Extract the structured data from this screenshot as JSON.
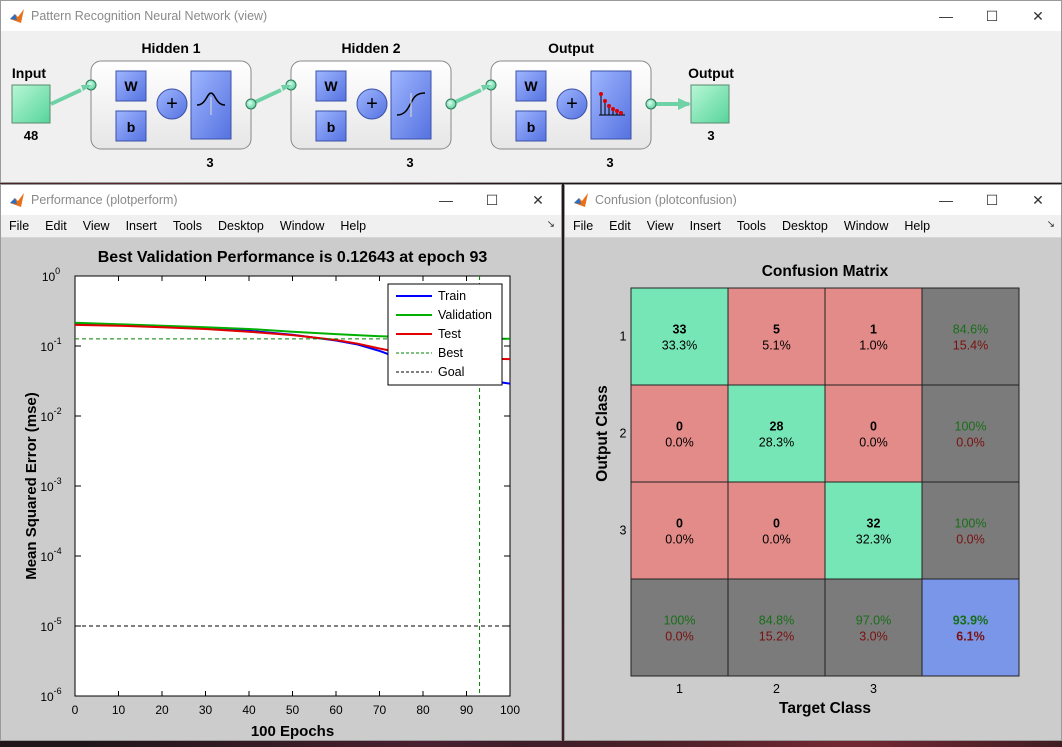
{
  "windows": {
    "nn": {
      "title": "Pattern Recognition Neural Network (view)",
      "input_label": "Input",
      "input_size": "48",
      "layers": [
        {
          "title": "Hidden 1",
          "size": "3",
          "w": "W",
          "b": "b",
          "transfer": "tansig"
        },
        {
          "title": "Hidden 2",
          "size": "3",
          "w": "W",
          "b": "b",
          "transfer": "logsig"
        },
        {
          "title": "Output",
          "size": "3",
          "w": "W",
          "b": "b",
          "transfer": "softmax"
        }
      ],
      "output_label": "Output",
      "output_size": "3"
    },
    "perf": {
      "title": "Performance (plotperform)"
    },
    "conf": {
      "title": "Confusion (plotconfusion)"
    }
  },
  "menu": [
    "File",
    "Edit",
    "View",
    "Insert",
    "Tools",
    "Desktop",
    "Window",
    "Help"
  ],
  "window_controls": {
    "minimize": "—",
    "maximize": "☐",
    "close": "✕"
  },
  "chart_data": [
    {
      "type": "line",
      "title": "Best Validation Performance is 0.12643 at epoch 93",
      "xlabel": "100 Epochs",
      "ylabel": "Mean Squared Error  (mse)",
      "xlim": [
        0,
        100
      ],
      "ylim": [
        1e-06,
        1
      ],
      "yscale": "log",
      "grid": false,
      "legend_position": "top-right",
      "x_ticks": [
        "0",
        "10",
        "20",
        "30",
        "40",
        "50",
        "60",
        "70",
        "80",
        "90",
        "100"
      ],
      "y_ticks": [
        {
          "base": "10",
          "exp": "0"
        },
        {
          "base": "10",
          "exp": "-1"
        },
        {
          "base": "10",
          "exp": "-2"
        },
        {
          "base": "10",
          "exp": "-3"
        },
        {
          "base": "10",
          "exp": "-4"
        },
        {
          "base": "10",
          "exp": "-5"
        },
        {
          "base": "10",
          "exp": "-6"
        }
      ],
      "series": [
        {
          "name": "Train",
          "color": "#0000ff",
          "style": "solid",
          "x": [
            0,
            10,
            20,
            30,
            40,
            50,
            60,
            65,
            70,
            75,
            80,
            85,
            90,
            95,
            100
          ],
          "y": [
            0.21,
            0.2,
            0.19,
            0.18,
            0.165,
            0.145,
            0.12,
            0.105,
            0.085,
            0.065,
            0.052,
            0.042,
            0.036,
            0.032,
            0.029
          ]
        },
        {
          "name": "Validation",
          "color": "#00b000",
          "style": "solid",
          "x": [
            0,
            10,
            20,
            30,
            40,
            50,
            60,
            70,
            80,
            90,
            93,
            100
          ],
          "y": [
            0.215,
            0.205,
            0.195,
            0.185,
            0.175,
            0.16,
            0.148,
            0.138,
            0.131,
            0.127,
            0.12643,
            0.127
          ]
        },
        {
          "name": "Test",
          "color": "#e00000",
          "style": "solid",
          "x": [
            0,
            10,
            20,
            30,
            40,
            50,
            60,
            65,
            70,
            75,
            80,
            85,
            90,
            95,
            100
          ],
          "y": [
            0.2,
            0.195,
            0.185,
            0.175,
            0.16,
            0.143,
            0.122,
            0.108,
            0.092,
            0.08,
            0.073,
            0.069,
            0.067,
            0.066,
            0.065
          ]
        },
        {
          "name": "Best",
          "color": "#008000",
          "style": "dashed",
          "value": 0.12643,
          "best_epoch": 93
        },
        {
          "name": "Goal",
          "color": "#000000",
          "style": "dashed",
          "value": 1e-05
        }
      ]
    },
    {
      "type": "heatmap",
      "title": "Confusion Matrix",
      "xlabel": "Target Class",
      "ylabel": "Output Class",
      "x_categories": [
        "1",
        "2",
        "3"
      ],
      "y_categories": [
        "1",
        "2",
        "3"
      ],
      "colors": {
        "correct": "#77e6b7",
        "incorrect": "#e38b88",
        "summary": "#7b7b7b",
        "overall": "#7a96e8",
        "green_text": "#186e18",
        "red_text": "#7a1010"
      },
      "cells": [
        [
          {
            "count": "33",
            "pct": "33.3%",
            "kind": "correct"
          },
          {
            "count": "5",
            "pct": "5.1%",
            "kind": "incorrect"
          },
          {
            "count": "1",
            "pct": "1.0%",
            "kind": "incorrect"
          },
          {
            "count": "84.6%",
            "pct": "15.4%",
            "kind": "summary"
          }
        ],
        [
          {
            "count": "0",
            "pct": "0.0%",
            "kind": "incorrect"
          },
          {
            "count": "28",
            "pct": "28.3%",
            "kind": "correct"
          },
          {
            "count": "0",
            "pct": "0.0%",
            "kind": "incorrect"
          },
          {
            "count": "100%",
            "pct": "0.0%",
            "kind": "summary"
          }
        ],
        [
          {
            "count": "0",
            "pct": "0.0%",
            "kind": "incorrect"
          },
          {
            "count": "0",
            "pct": "0.0%",
            "kind": "incorrect"
          },
          {
            "count": "32",
            "pct": "32.3%",
            "kind": "correct"
          },
          {
            "count": "100%",
            "pct": "0.0%",
            "kind": "summary"
          }
        ],
        [
          {
            "count": "100%",
            "pct": "0.0%",
            "kind": "summary"
          },
          {
            "count": "84.8%",
            "pct": "15.2%",
            "kind": "summary"
          },
          {
            "count": "97.0%",
            "pct": "3.0%",
            "kind": "summary"
          },
          {
            "count": "93.9%",
            "pct": "6.1%",
            "kind": "overall"
          }
        ]
      ]
    }
  ]
}
